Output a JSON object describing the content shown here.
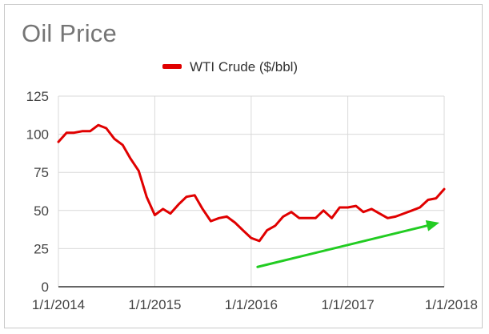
{
  "chart_data": {
    "type": "line",
    "title": "Oil Price",
    "xlabel": "",
    "ylabel": "",
    "ylim": [
      0,
      125
    ],
    "yticks": [
      0,
      25,
      50,
      75,
      100,
      125
    ],
    "xlim": [
      "2014-01-01",
      "2018-01-01"
    ],
    "xticks": [
      "1/1/2014",
      "1/1/2015",
      "1/1/2016",
      "1/1/2017",
      "1/1/2018"
    ],
    "grid": true,
    "legend_position": "top",
    "colors": {
      "series": "#e00000",
      "annotation_arrow": "#22cc22",
      "grid": "#d9d9d9",
      "axis": "#333333"
    },
    "series": [
      {
        "name": "WTI Crude ($/bbl)",
        "x": [
          "2014-01-01",
          "2014-02-01",
          "2014-03-01",
          "2014-04-01",
          "2014-05-01",
          "2014-06-01",
          "2014-07-01",
          "2014-08-01",
          "2014-09-01",
          "2014-10-01",
          "2014-11-01",
          "2014-12-01",
          "2015-01-01",
          "2015-02-01",
          "2015-03-01",
          "2015-04-01",
          "2015-05-01",
          "2015-06-01",
          "2015-07-01",
          "2015-08-01",
          "2015-09-01",
          "2015-10-01",
          "2015-11-01",
          "2015-12-01",
          "2016-01-01",
          "2016-02-01",
          "2016-03-01",
          "2016-04-01",
          "2016-05-01",
          "2016-06-01",
          "2016-07-01",
          "2016-08-01",
          "2016-09-01",
          "2016-10-01",
          "2016-11-01",
          "2016-12-01",
          "2017-01-01",
          "2017-02-01",
          "2017-03-01",
          "2017-04-01",
          "2017-05-01",
          "2017-06-01",
          "2017-07-01",
          "2017-08-01",
          "2017-09-01",
          "2017-10-01",
          "2017-11-01",
          "2017-12-01",
          "2018-01-01"
        ],
        "y": [
          95,
          101,
          101,
          102,
          102,
          106,
          104,
          97,
          93,
          84,
          76,
          59,
          47,
          51,
          48,
          54,
          59,
          60,
          51,
          43,
          45,
          46,
          42,
          37,
          32,
          30,
          37,
          40,
          46,
          49,
          45,
          45,
          45,
          50,
          45,
          52,
          52,
          53,
          49,
          51,
          48,
          45,
          46,
          48,
          50,
          52,
          57,
          58,
          64
        ]
      }
    ],
    "annotations": [
      {
        "type": "arrow",
        "from": {
          "x": "2016-01-01",
          "y": 13
        },
        "to": {
          "x": "2018-01-01",
          "y": 42
        }
      }
    ]
  }
}
